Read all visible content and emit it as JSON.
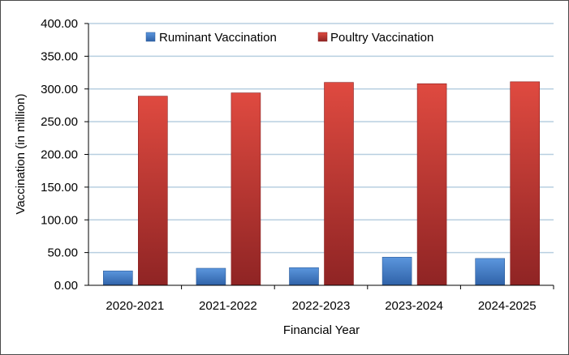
{
  "chart_data": {
    "type": "bar",
    "title": "",
    "xlabel": "Financial Year",
    "ylabel": "Vaccination (in million)",
    "ylim": [
      0,
      400
    ],
    "yticks": [
      "0.00",
      "50.00",
      "100.00",
      "150.00",
      "200.00",
      "250.00",
      "300.00",
      "350.00",
      "400.00"
    ],
    "categories": [
      "2020-2021",
      "2021-2022",
      "2022-2023",
      "2023-2024",
      "2024-2025"
    ],
    "series": [
      {
        "name": "Ruminant Vaccination",
        "values": [
          22,
          26,
          27,
          43,
          41
        ],
        "color": "#3e78c4"
      },
      {
        "name": "Poultry Vaccination",
        "values": [
          289,
          294,
          310,
          308,
          311
        ],
        "color": "#c0392b"
      }
    ],
    "grid": true,
    "legend_position": "top"
  }
}
